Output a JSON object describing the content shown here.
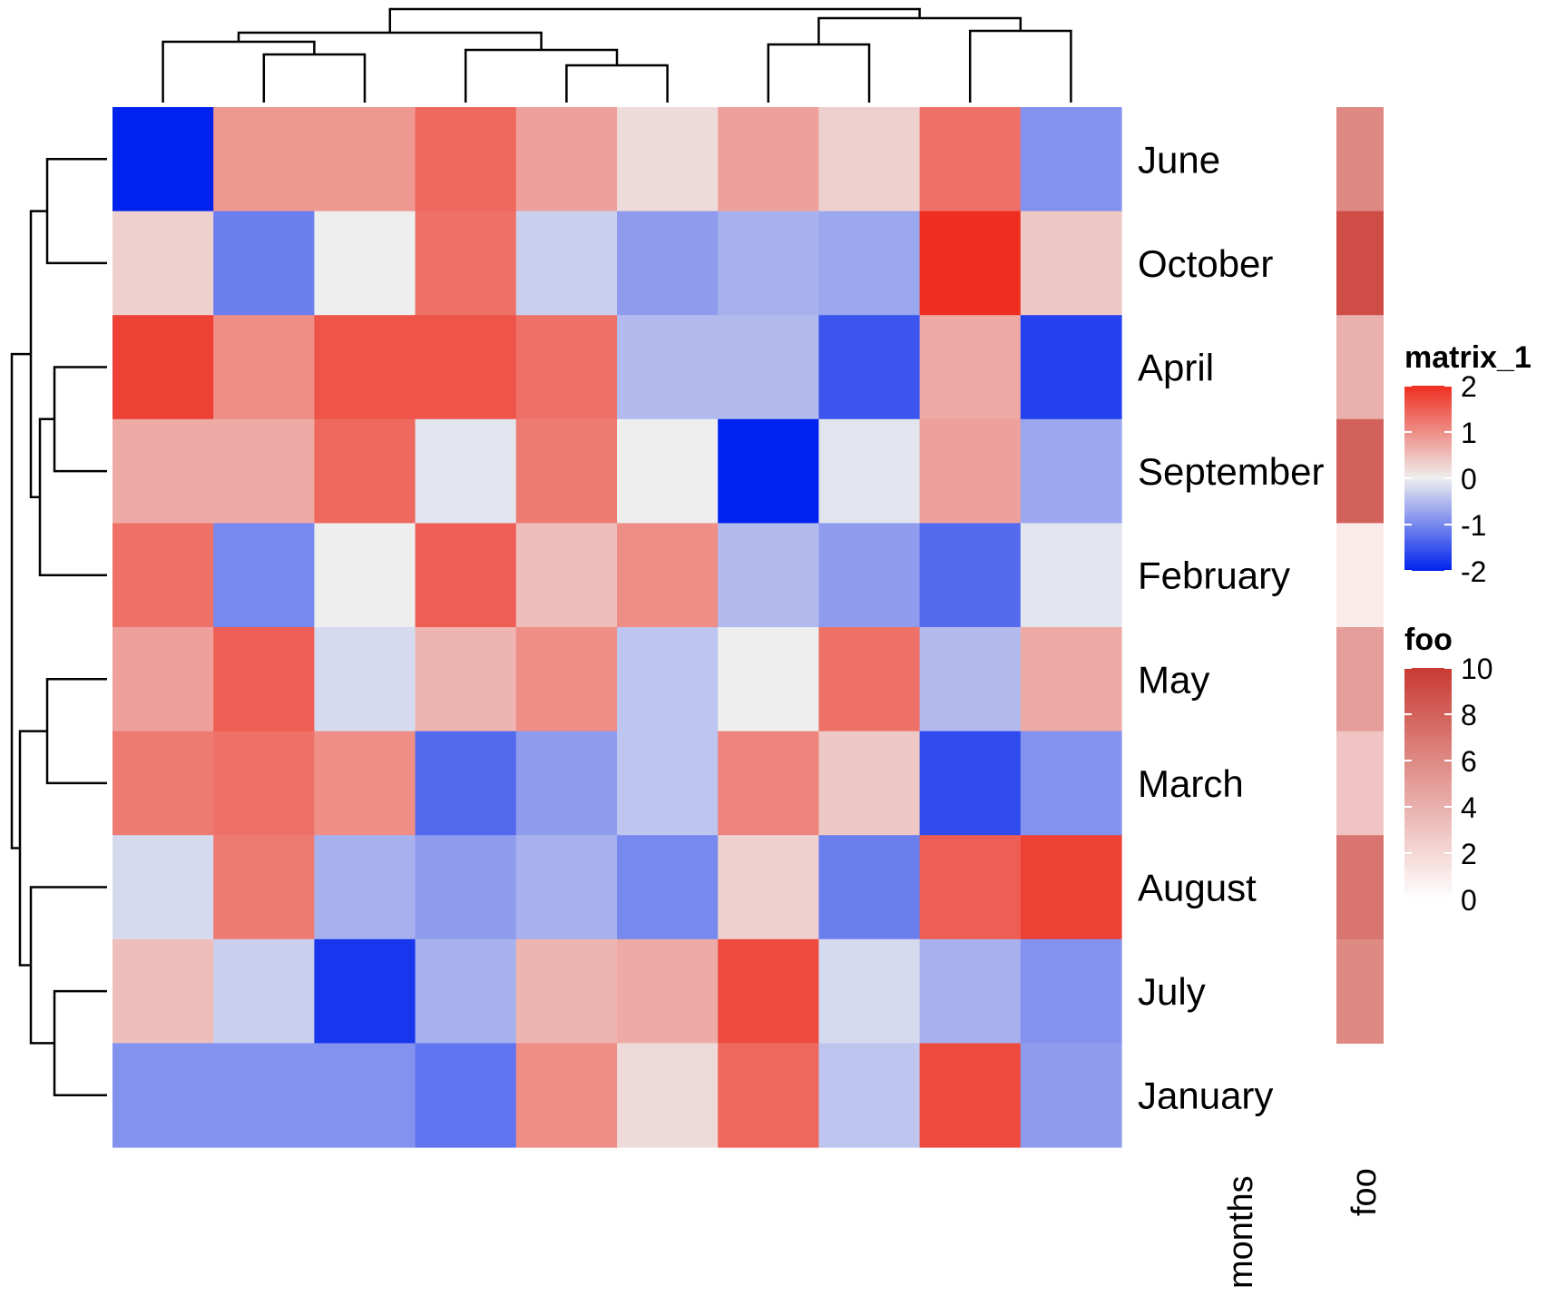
{
  "chart_data": {
    "type": "heatmap",
    "rows": [
      "June",
      "October",
      "April",
      "September",
      "February",
      "May",
      "March",
      "August",
      "July",
      "January"
    ],
    "n_cols": 10,
    "values": [
      [
        -2.2,
        0.9,
        0.9,
        1.4,
        0.8,
        0.2,
        0.8,
        0.3,
        1.3,
        -0.9
      ],
      [
        0.3,
        -1.1,
        0.0,
        1.3,
        -0.3,
        -0.8,
        -0.6,
        -0.7,
        2.1,
        0.4
      ],
      [
        1.8,
        1.0,
        1.6,
        1.6,
        1.3,
        -0.5,
        -0.5,
        -1.5,
        0.7,
        -1.7
      ],
      [
        0.7,
        0.7,
        1.4,
        -0.1,
        1.2,
        0.0,
        -2.4,
        -0.1,
        0.8,
        -0.7
      ],
      [
        1.3,
        -1.0,
        0.0,
        1.5,
        0.5,
        1.0,
        -0.5,
        -0.8,
        -1.3,
        -0.1
      ],
      [
        0.8,
        1.5,
        -0.2,
        0.6,
        1.0,
        -0.4,
        0.0,
        1.3,
        -0.5,
        0.7
      ],
      [
        1.2,
        1.3,
        1.0,
        -1.3,
        -0.8,
        -0.4,
        1.1,
        0.4,
        -1.6,
        -0.9
      ],
      [
        -0.2,
        1.2,
        -0.6,
        -0.8,
        -0.6,
        -1.0,
        0.3,
        -1.1,
        1.5,
        1.8
      ],
      [
        0.5,
        -0.3,
        -1.8,
        -0.6,
        0.6,
        0.7,
        1.7,
        -0.2,
        -0.6,
        -0.9
      ],
      [
        -0.9,
        -0.9,
        -0.9,
        -1.2,
        1.0,
        0.2,
        1.4,
        -0.4,
        1.7,
        -0.8
      ]
    ],
    "annotation": {
      "name": "foo",
      "values": [
        6,
        9,
        4,
        8,
        1,
        5,
        3,
        7,
        6,
        null
      ]
    },
    "col_axis_label": "",
    "row_axis_label": "months",
    "legends": [
      {
        "title": "matrix_1",
        "ticks": [
          "2",
          "1",
          "0",
          "-1",
          "-2"
        ],
        "range": [
          -2,
          2
        ],
        "colors": {
          "low": "#0022ee",
          "mid": "#eeeeee",
          "high": "#ee2e20"
        }
      },
      {
        "title": "foo",
        "ticks": [
          "10",
          "8",
          "6",
          "4",
          "2",
          "0"
        ],
        "range": [
          0,
          10
        ],
        "colors": {
          "low": "#ffffff",
          "high": "#c83a32"
        }
      }
    ],
    "legend_position": "right"
  }
}
